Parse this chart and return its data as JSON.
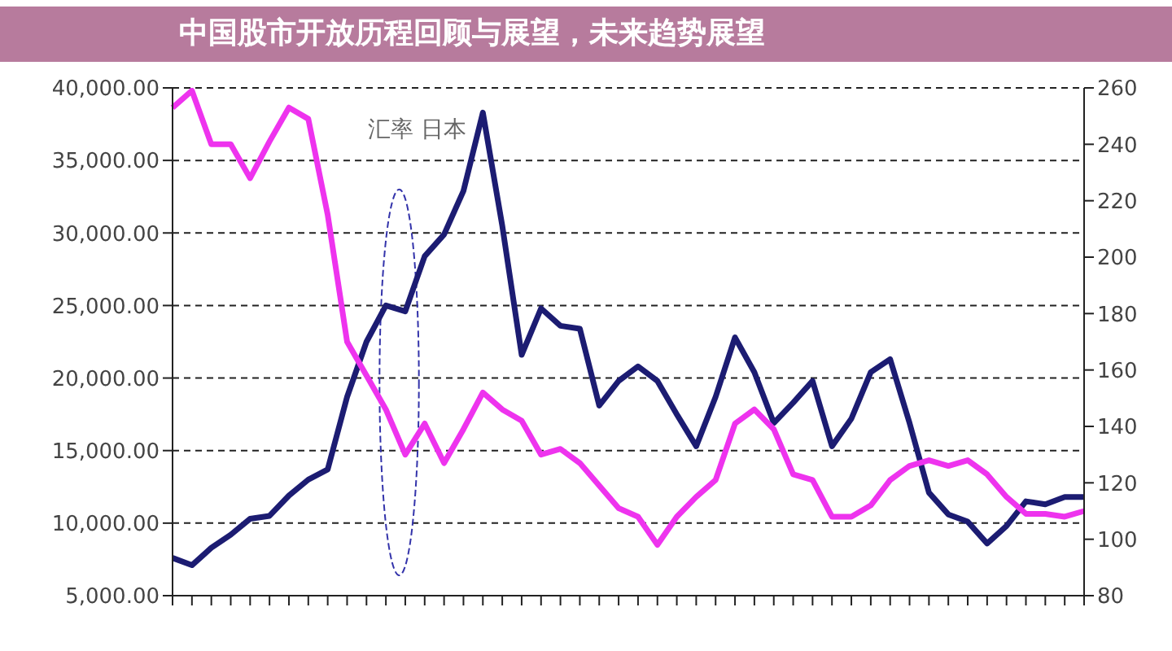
{
  "chart_data": {
    "type": "line",
    "title": "中国股市开放历程回顾与展望，未来趋势展望",
    "categories": [
      null,
      null,
      null,
      null,
      null,
      null,
      null,
      null,
      null,
      null,
      null,
      null,
      null,
      null,
      null,
      null,
      null,
      null,
      null,
      null,
      null,
      null,
      null,
      null,
      null,
      null,
      null,
      null,
      null,
      null,
      null,
      null,
      null,
      null,
      null,
      null,
      null,
      null,
      null,
      null,
      null,
      null,
      null,
      null,
      null,
      null,
      null,
      null
    ],
    "series": [
      {
        "color": "#1c1c72",
        "values": [
          7600,
          7100,
          8300,
          9200,
          10300,
          10500,
          11900,
          13000,
          13700,
          18700,
          22500,
          25000,
          24600,
          28400,
          29900,
          32900,
          38300,
          30500,
          21600,
          24800,
          23600,
          23400,
          18100,
          19800,
          20800,
          19800,
          17500,
          15300,
          18700,
          22800,
          20400,
          16900,
          18300,
          19800,
          15300,
          17200,
          20400,
          21300,
          16900,
          12100,
          10600,
          10100,
          8600,
          9800,
          11500,
          11300,
          11800,
          11800
        ]
      },
      {
        "color": "#ee33ee",
        "axis": "y2",
        "values": [
          253,
          259,
          240,
          240,
          228,
          241,
          253,
          249,
          215,
          170,
          158,
          146,
          130,
          141,
          127,
          139,
          152,
          146,
          142,
          130,
          132,
          127,
          119,
          111,
          108,
          98,
          108,
          115,
          121,
          141,
          146,
          139,
          123,
          121,
          108,
          108,
          112,
          121,
          126,
          128,
          126,
          128,
          123,
          115,
          109,
          109,
          108,
          110
        ]
      }
    ],
    "annotations": [
      "汇率 日本"
    ],
    "ylim": [
      5000,
      40000
    ],
    "yticks": [
      {
        "value": 5000,
        "label": "5,000.00"
      },
      {
        "value": 10000,
        "label": "10,000.00"
      },
      {
        "value": 15000,
        "label": "15,000.00"
      },
      {
        "value": 20000,
        "label": "20,000.00"
      },
      {
        "value": 25000,
        "label": "25,000.00"
      },
      {
        "value": 30000,
        "label": "30,000.00"
      },
      {
        "value": 35000,
        "label": "35,000.00"
      },
      {
        "value": 40000,
        "label": "40,000.00"
      }
    ],
    "y2lim": [
      80,
      260
    ],
    "y2ticks": [
      80,
      100,
      120,
      140,
      160,
      180,
      200,
      220,
      240,
      260
    ],
    "grid": "y",
    "marker": "none",
    "line_style": "solid"
  }
}
